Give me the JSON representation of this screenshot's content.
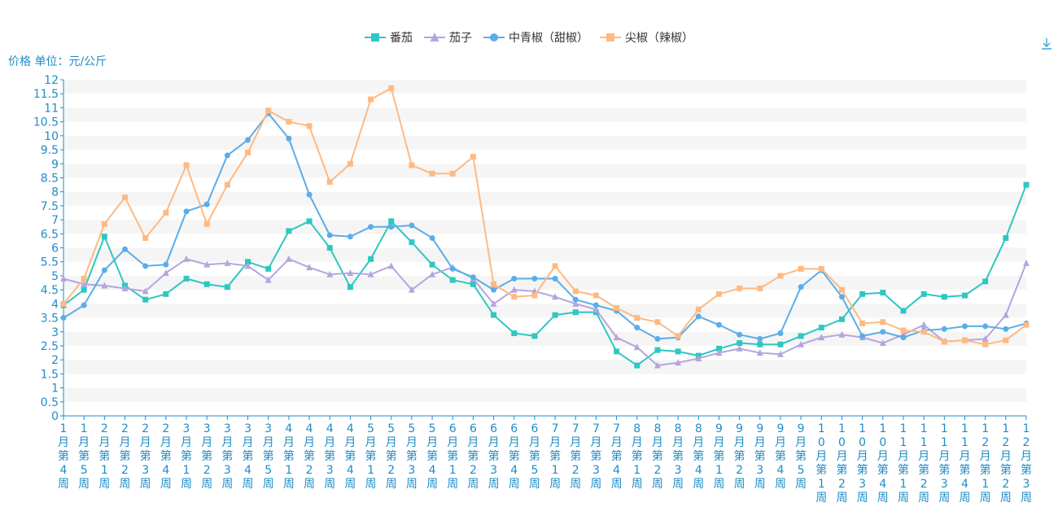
{
  "chart_data": {
    "type": "line",
    "ylabel": "价格 单位：元/公斤",
    "ylim": [
      0,
      12
    ],
    "ytick_step": 0.5,
    "yticks": [
      "0",
      "0.5",
      "1",
      "1.5",
      "2",
      "2.5",
      "3",
      "3.5",
      "4",
      "4.5",
      "5",
      "5.5",
      "6",
      "6.5",
      "7",
      "7.5",
      "8",
      "8.5",
      "9",
      "9.5",
      "10",
      "10.5",
      "11",
      "11.5",
      "12"
    ],
    "grid": "horizontal-bands",
    "legend_position": "top-center",
    "download_icon": "download-icon",
    "categories": [
      "1月第4周",
      "1月第5周",
      "2月第1周",
      "2月第2周",
      "2月第3周",
      "2月第4周",
      "3月第1周",
      "3月第2周",
      "3月第3周",
      "3月第4周",
      "3月第5周",
      "4月第1周",
      "4月第2周",
      "4月第3周",
      "4月第4周",
      "5月第1周",
      "5月第2周",
      "5月第3周",
      "5月第4周",
      "6月第1周",
      "6月第2周",
      "6月第3周",
      "6月第4周",
      "6月第5周",
      "7月第1周",
      "7月第2周",
      "7月第3周",
      "7月第4周",
      "8月第1周",
      "8月第2周",
      "8月第3周",
      "8月第4周",
      "9月第1周",
      "9月第2周",
      "9月第3周",
      "9月第4周",
      "9月第5周",
      "10月第1周",
      "10月第2周",
      "10月第3周",
      "10月第4周",
      "11月第1周",
      "11月第2周",
      "11月第3周",
      "11月第4周",
      "12月第1周",
      "12月第2周",
      "12月第3周"
    ],
    "series": [
      {
        "name": "番茄",
        "color": "#2ec7c1",
        "marker": "square",
        "values": [
          3.95,
          4.5,
          6.4,
          4.65,
          4.15,
          4.35,
          4.9,
          4.7,
          4.6,
          5.5,
          5.25,
          6.6,
          6.95,
          6.0,
          4.6,
          5.6,
          6.95,
          6.2,
          5.4,
          4.85,
          4.7,
          3.6,
          2.95,
          2.85,
          3.6,
          3.7,
          3.7,
          2.3,
          1.8,
          2.35,
          2.3,
          2.15,
          2.4,
          2.6,
          2.55,
          2.55,
          2.85,
          3.15,
          3.45,
          4.35,
          4.4,
          3.75,
          4.35,
          4.25,
          4.3,
          4.8,
          6.35,
          8.25
        ]
      },
      {
        "name": "茄子",
        "color": "#b5a5de",
        "marker": "triangle",
        "values": [
          4.9,
          4.7,
          4.65,
          4.55,
          4.45,
          5.1,
          5.6,
          5.4,
          5.45,
          5.35,
          4.85,
          5.6,
          5.3,
          5.05,
          5.1,
          5.05,
          5.35,
          4.5,
          5.05,
          5.3,
          4.9,
          4.0,
          4.5,
          4.45,
          4.25,
          4.0,
          3.8,
          2.8,
          2.45,
          1.8,
          1.9,
          2.05,
          2.25,
          2.4,
          2.25,
          2.2,
          2.55,
          2.8,
          2.9,
          2.8,
          2.6,
          2.9,
          3.25,
          2.65,
          2.7,
          2.75,
          3.6,
          5.45
        ]
      },
      {
        "name": "中青椒（甜椒）",
        "color": "#5aade8",
        "marker": "circle",
        "values": [
          3.5,
          3.95,
          5.2,
          5.95,
          5.35,
          5.4,
          7.3,
          7.55,
          9.3,
          9.85,
          10.8,
          9.9,
          7.9,
          6.45,
          6.4,
          6.75,
          6.75,
          6.8,
          6.35,
          5.25,
          4.95,
          4.5,
          4.9,
          4.9,
          4.9,
          4.15,
          3.95,
          3.75,
          3.15,
          2.75,
          2.8,
          3.55,
          3.25,
          2.9,
          2.75,
          2.95,
          4.6,
          5.2,
          4.25,
          2.85,
          3.0,
          2.8,
          3.05,
          3.1,
          3.2,
          3.2,
          3.1,
          3.3
        ]
      },
      {
        "name": "尖椒（辣椒）",
        "color": "#ffb980",
        "marker": "square",
        "values": [
          4.0,
          4.9,
          6.85,
          7.8,
          6.35,
          7.25,
          8.95,
          6.85,
          8.25,
          9.4,
          10.9,
          10.5,
          10.35,
          8.35,
          9.0,
          11.3,
          11.7,
          8.95,
          8.65,
          8.65,
          9.25,
          4.7,
          4.25,
          4.3,
          5.35,
          4.45,
          4.3,
          3.85,
          3.5,
          3.35,
          2.85,
          3.8,
          4.35,
          4.55,
          4.55,
          5.0,
          5.25,
          5.25,
          4.5,
          3.3,
          3.35,
          3.05,
          3.0,
          2.65,
          2.7,
          2.55,
          2.7,
          3.25
        ]
      }
    ]
  }
}
